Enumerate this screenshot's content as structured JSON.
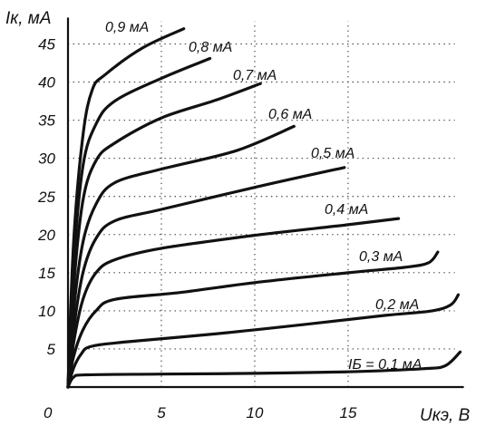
{
  "chart_data": {
    "type": "line",
    "xlabel": "Uкэ, В",
    "ylabel": "Iк, мА",
    "xlim": [
      0,
      21
    ],
    "ylim": [
      0,
      48
    ],
    "x_ticks": [
      0,
      5,
      10,
      15
    ],
    "y_ticks": [
      5,
      10,
      15,
      20,
      25,
      30,
      35,
      40,
      45
    ],
    "grid": true,
    "series": [
      {
        "name": "IБ = 0,1 мА",
        "points": [
          [
            0,
            0
          ],
          [
            0.3,
            1.3
          ],
          [
            1,
            1.6
          ],
          [
            5,
            1.7
          ],
          [
            10,
            1.8
          ],
          [
            15,
            2.0
          ],
          [
            19,
            2.4
          ],
          [
            20.2,
            2.8
          ],
          [
            21,
            4.6
          ]
        ]
      },
      {
        "name": "0,2 мА",
        "points": [
          [
            0,
            0
          ],
          [
            0.3,
            2.5
          ],
          [
            0.7,
            4.3
          ],
          [
            1.2,
            5.3
          ],
          [
            3,
            5.9
          ],
          [
            8,
            7.0
          ],
          [
            13,
            8.3
          ],
          [
            17,
            9.4
          ],
          [
            19.5,
            10.0
          ],
          [
            20.5,
            10.8
          ],
          [
            20.9,
            12.1
          ]
        ]
      },
      {
        "name": "0,3 мА",
        "points": [
          [
            0,
            0
          ],
          [
            0.3,
            4.0
          ],
          [
            0.8,
            7.5
          ],
          [
            1.5,
            10.0
          ],
          [
            2.5,
            11.5
          ],
          [
            6,
            12.4
          ],
          [
            10,
            13.7
          ],
          [
            15,
            15.0
          ],
          [
            18,
            15.7
          ],
          [
            19.3,
            16.3
          ],
          [
            19.8,
            17.7
          ]
        ]
      },
      {
        "name": "0,4 мА",
        "points": [
          [
            0,
            0
          ],
          [
            0.3,
            5.8
          ],
          [
            0.8,
            11.5
          ],
          [
            1.5,
            15.0
          ],
          [
            2.5,
            16.7
          ],
          [
            5,
            18.2
          ],
          [
            10,
            19.9
          ],
          [
            15,
            21.3
          ],
          [
            17.7,
            22.1
          ]
        ]
      },
      {
        "name": "0,5 мА",
        "points": [
          [
            0,
            0
          ],
          [
            0.3,
            7.5
          ],
          [
            0.8,
            15.0
          ],
          [
            1.5,
            19.5
          ],
          [
            2.5,
            21.8
          ],
          [
            5,
            23.3
          ],
          [
            10,
            26.2
          ],
          [
            14.8,
            28.8
          ]
        ]
      },
      {
        "name": "0,6 мА",
        "points": [
          [
            0,
            0
          ],
          [
            0.3,
            10.0
          ],
          [
            0.8,
            19.0
          ],
          [
            1.5,
            24.0
          ],
          [
            2.5,
            26.8
          ],
          [
            5,
            28.6
          ],
          [
            9,
            31.0
          ],
          [
            12.1,
            34.2
          ]
        ]
      },
      {
        "name": "0,7 мА",
        "points": [
          [
            0,
            0
          ],
          [
            0.3,
            13.0
          ],
          [
            0.8,
            24.5
          ],
          [
            1.5,
            29.7
          ],
          [
            2.5,
            32.0
          ],
          [
            5,
            35.3
          ],
          [
            8,
            37.7
          ],
          [
            10.3,
            39.8
          ]
        ]
      },
      {
        "name": "0,8 мА",
        "points": [
          [
            0,
            0
          ],
          [
            0.3,
            16.0
          ],
          [
            0.8,
            29.0
          ],
          [
            1.5,
            34.5
          ],
          [
            2.5,
            37.5
          ],
          [
            5,
            40.5
          ],
          [
            7.6,
            43.1
          ]
        ]
      },
      {
        "name": "0,9 мА",
        "points": [
          [
            0,
            0
          ],
          [
            0.3,
            19.0
          ],
          [
            0.8,
            33.0
          ],
          [
            1.3,
            39.0
          ],
          [
            2,
            41.0
          ],
          [
            4,
            44.5
          ],
          [
            6.2,
            47.0
          ]
        ]
      }
    ]
  }
}
